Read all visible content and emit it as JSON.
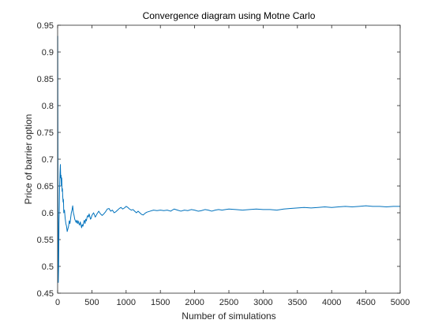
{
  "chart_data": {
    "type": "line",
    "title": "Convergence diagram using Motne Carlo",
    "xlabel": "Number of simulations",
    "ylabel": "Price of barrier option",
    "xlim": [
      0,
      5000
    ],
    "ylim": [
      0.45,
      0.95
    ],
    "xticks": [
      "0",
      "500",
      "1000",
      "1500",
      "2000",
      "2500",
      "3000",
      "3500",
      "4000",
      "4500",
      "5000"
    ],
    "yticks": [
      "0.45",
      "0.5",
      "0.55",
      "0.6",
      "0.65",
      "0.7",
      "0.75",
      "0.8",
      "0.85",
      "0.9",
      "0.95"
    ],
    "grid": false,
    "line_color": "#0072bd",
    "axes_color": "#262626",
    "series": [
      {
        "x": [
          1,
          5,
          10,
          15,
          20,
          25,
          30,
          35,
          40,
          45,
          50,
          55,
          60,
          65,
          70,
          75,
          80,
          85,
          90,
          100,
          110,
          120,
          130,
          140,
          150,
          160,
          170,
          180,
          190,
          200,
          210,
          220,
          230,
          240,
          250,
          260,
          270,
          280,
          290,
          300,
          310,
          320,
          330,
          340,
          350,
          360,
          370,
          380,
          390,
          400,
          410,
          420,
          430,
          440,
          450,
          460,
          470,
          480,
          490,
          500,
          525,
          550,
          575,
          600,
          625,
          650,
          675,
          700,
          725,
          750,
          775,
          800,
          825,
          850,
          875,
          900,
          925,
          950,
          975,
          1000,
          1025,
          1050,
          1075,
          1100,
          1125,
          1150,
          1175,
          1200,
          1225,
          1250,
          1275,
          1300,
          1350,
          1400,
          1450,
          1500,
          1550,
          1600,
          1650,
          1700,
          1750,
          1800,
          1850,
          1900,
          1950,
          2000,
          2050,
          2100,
          2150,
          2200,
          2250,
          2300,
          2350,
          2400,
          2450,
          2500,
          2600,
          2700,
          2800,
          2900,
          3000,
          3100,
          3200,
          3300,
          3400,
          3500,
          3600,
          3700,
          3800,
          3900,
          4000,
          4100,
          4200,
          4300,
          4400,
          4500,
          4600,
          4700,
          4800,
          4900,
          5000
        ],
        "values": [
          0.93,
          0.66,
          0.47,
          0.5,
          0.58,
          0.61,
          0.655,
          0.675,
          0.69,
          0.665,
          0.67,
          0.65,
          0.665,
          0.64,
          0.645,
          0.63,
          0.62,
          0.625,
          0.6,
          0.605,
          0.59,
          0.58,
          0.575,
          0.565,
          0.57,
          0.575,
          0.585,
          0.58,
          0.59,
          0.6,
          0.605,
          0.613,
          0.6,
          0.595,
          0.588,
          0.585,
          0.582,
          0.586,
          0.58,
          0.585,
          0.58,
          0.577,
          0.583,
          0.578,
          0.572,
          0.578,
          0.575,
          0.582,
          0.586,
          0.58,
          0.588,
          0.585,
          0.592,
          0.595,
          0.592,
          0.598,
          0.593,
          0.588,
          0.59,
          0.595,
          0.6,
          0.592,
          0.598,
          0.603,
          0.598,
          0.595,
          0.598,
          0.602,
          0.607,
          0.608,
          0.603,
          0.605,
          0.6,
          0.602,
          0.605,
          0.608,
          0.61,
          0.607,
          0.609,
          0.612,
          0.61,
          0.607,
          0.605,
          0.606,
          0.603,
          0.6,
          0.603,
          0.6,
          0.597,
          0.596,
          0.599,
          0.601,
          0.603,
          0.605,
          0.604,
          0.605,
          0.604,
          0.605,
          0.603,
          0.607,
          0.605,
          0.603,
          0.605,
          0.604,
          0.606,
          0.605,
          0.603,
          0.604,
          0.606,
          0.605,
          0.603,
          0.605,
          0.606,
          0.605,
          0.606,
          0.607,
          0.606,
          0.605,
          0.606,
          0.607,
          0.606,
          0.606,
          0.605,
          0.607,
          0.608,
          0.609,
          0.61,
          0.609,
          0.61,
          0.611,
          0.61,
          0.611,
          0.612,
          0.611,
          0.612,
          0.613,
          0.612,
          0.612,
          0.611,
          0.612,
          0.612
        ]
      }
    ]
  }
}
